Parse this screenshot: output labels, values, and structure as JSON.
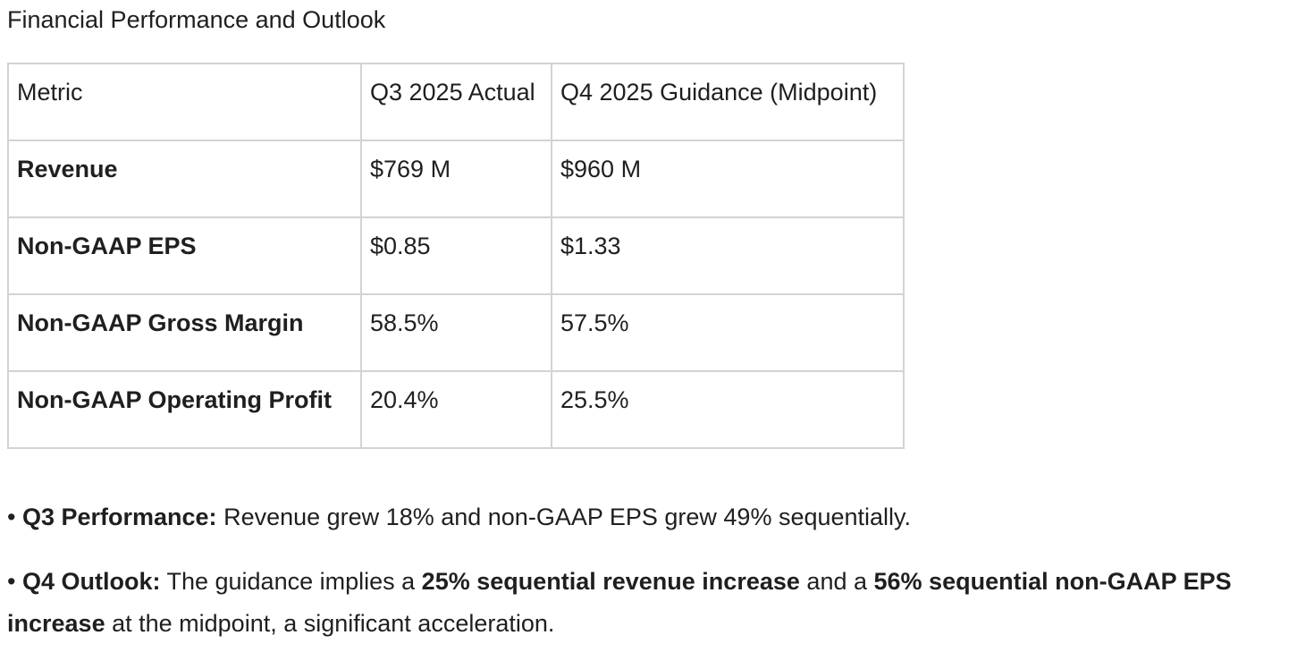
{
  "heading": "Financial Performance and Outlook",
  "table": {
    "headers": [
      "Metric",
      "Q3 2025 Actual",
      "Q4 2025 Guidance (Midpoint)"
    ],
    "rows": [
      [
        "Revenue",
        "$769 M",
        "$960 M"
      ],
      [
        "Non-GAAP EPS",
        "$0.85",
        "$1.33"
      ],
      [
        "Non-GAAP Gross Margin",
        "58.5%",
        "57.5%"
      ],
      [
        "Non-GAAP Operating Profit",
        "20.4%",
        "25.5%"
      ]
    ]
  },
  "bullets": {
    "bullet_char": "•",
    "q3": {
      "label": "Q3 Performance:",
      "text": "Revenue grew 18% and non-GAAP EPS grew 49% sequentially."
    },
    "q4": {
      "label": "Q4 Outlook:",
      "part1": "The guidance implies a",
      "bold1": "25% sequential revenue increase",
      "part2": "and a",
      "bold2": "56% sequential non-GAAP EPS increase",
      "part3": "at the midpoint, a significant acceleration."
    }
  }
}
